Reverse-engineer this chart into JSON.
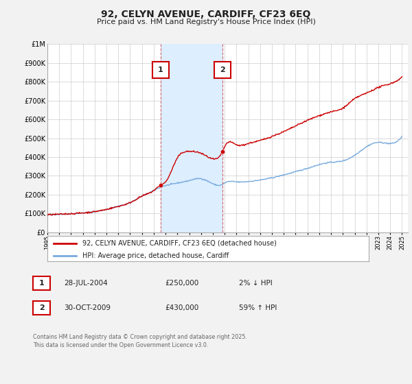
{
  "title": "92, CELYN AVENUE, CARDIFF, CF23 6EQ",
  "subtitle": "Price paid vs. HM Land Registry's House Price Index (HPI)",
  "background_color": "#f2f2f2",
  "plot_background": "#ffffff",
  "ylim": [
    0,
    1000000
  ],
  "xlim_start": 1995,
  "xlim_end": 2025.5,
  "transaction1_x": 2004.57,
  "transaction1_y": 250000,
  "transaction1_label": "28-JUL-2004",
  "transaction1_price": "£250,000",
  "transaction1_hpi": "2% ↓ HPI",
  "transaction2_x": 2009.83,
  "transaction2_y": 430000,
  "transaction2_label": "30-OCT-2009",
  "transaction2_price": "£430,000",
  "transaction2_hpi": "59% ↑ HPI",
  "shade_start": 2004.57,
  "shade_end": 2009.83,
  "line1_color": "#cc0000",
  "line2_color": "#77aadd",
  "shade_color": "#ddeeff",
  "marker_color": "#cc0000",
  "grid_color": "#cccccc",
  "legend_label1": "92, CELYN AVENUE, CARDIFF, CF23 6EQ (detached house)",
  "legend_label2": "HPI: Average price, detached house, Cardiff",
  "footer": "Contains HM Land Registry data © Crown copyright and database right 2025.\nThis data is licensed under the Open Government Licence v3.0.",
  "ytick_values": [
    0,
    100000,
    200000,
    300000,
    400000,
    500000,
    600000,
    700000,
    800000,
    900000,
    1000000
  ],
  "ytick_labels": [
    "£0",
    "£100K",
    "£200K",
    "£300K",
    "£400K",
    "£500K",
    "£600K",
    "£700K",
    "£800K",
    "£900K",
    "£1M"
  ]
}
